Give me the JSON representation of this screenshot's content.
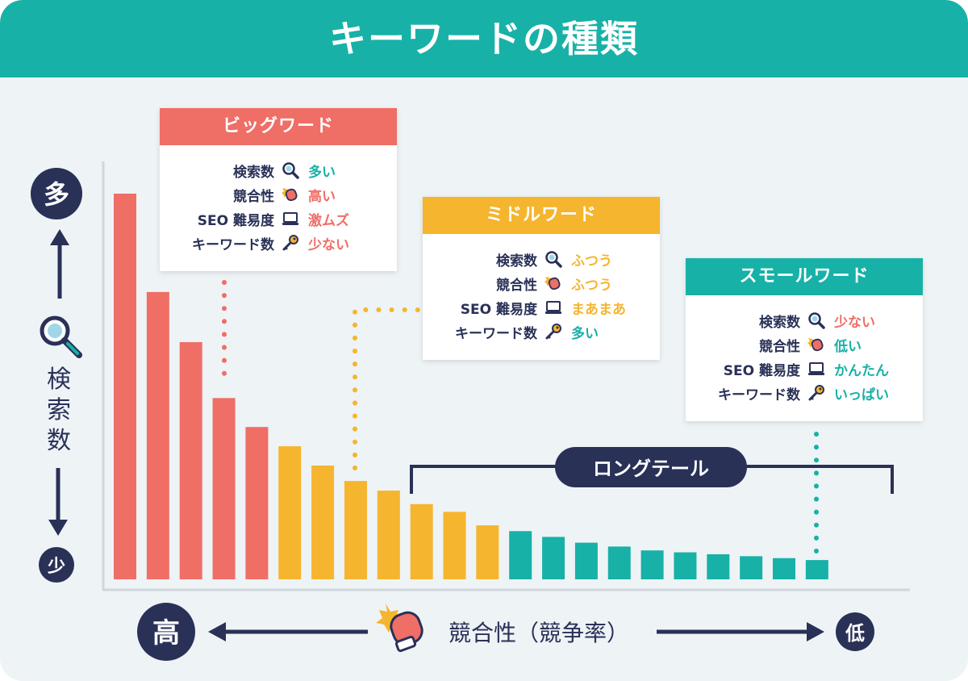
{
  "title": "キーワードの種類",
  "colors": {
    "big": "#ef6e66",
    "middle": "#f6b52e",
    "small": "#17b1a7",
    "navy": "#2a3157",
    "header": "#17b1a7"
  },
  "chart_data": {
    "type": "bar",
    "ylabel": "検索数",
    "xlabel": "競合性（競争率）",
    "y_high": "多",
    "y_low": "少",
    "x_high": "高",
    "x_low": "低",
    "values": [
      100,
      74.5,
      61.5,
      47,
      39.5,
      34.5,
      29.5,
      25.5,
      23,
      19.5,
      17.5,
      14,
      12.5,
      11,
      9.5,
      8.5,
      7.5,
      7,
      6.5,
      6,
      5.5,
      5
    ],
    "groups": [
      "big",
      "big",
      "big",
      "big",
      "big",
      "middle",
      "middle",
      "middle",
      "middle",
      "middle",
      "middle",
      "middle",
      "small",
      "small",
      "small",
      "small",
      "small",
      "small",
      "small",
      "small",
      "small",
      "small"
    ],
    "ylim": [
      0,
      100
    ],
    "longtail_label": "ロングテール"
  },
  "boxes": {
    "big": {
      "title": "ビッグワード",
      "rows": [
        {
          "label": "検索数",
          "icon": "magnifier-icon",
          "value": "多い",
          "color": "#17b1a7"
        },
        {
          "label": "競合性",
          "icon": "boxing-glove-icon",
          "value": "高い",
          "color": "#ef6e66"
        },
        {
          "label": "SEO 難易度",
          "icon": "laptop-icon",
          "value": "激ムズ",
          "color": "#ef6e66"
        },
        {
          "label": "キーワード数",
          "icon": "key-icon",
          "value": "少ない",
          "color": "#ef6e66"
        }
      ]
    },
    "middle": {
      "title": "ミドルワード",
      "rows": [
        {
          "label": "検索数",
          "icon": "magnifier-icon",
          "value": "ふつう",
          "color": "#f6b52e"
        },
        {
          "label": "競合性",
          "icon": "boxing-glove-icon",
          "value": "ふつう",
          "color": "#f6b52e"
        },
        {
          "label": "SEO 難易度",
          "icon": "laptop-icon",
          "value": "まあまあ",
          "color": "#f6b52e"
        },
        {
          "label": "キーワード数",
          "icon": "key-icon",
          "value": "多い",
          "color": "#17b1a7"
        }
      ]
    },
    "small": {
      "title": "スモールワード",
      "rows": [
        {
          "label": "検索数",
          "icon": "magnifier-icon",
          "value": "少ない",
          "color": "#ef6e66"
        },
        {
          "label": "競合性",
          "icon": "boxing-glove-icon",
          "value": "低い",
          "color": "#17b1a7"
        },
        {
          "label": "SEO 難易度",
          "icon": "laptop-icon",
          "value": "かんたん",
          "color": "#17b1a7"
        },
        {
          "label": "キーワード数",
          "icon": "key-icon",
          "value": "いっぱい",
          "color": "#17b1a7"
        }
      ]
    }
  }
}
